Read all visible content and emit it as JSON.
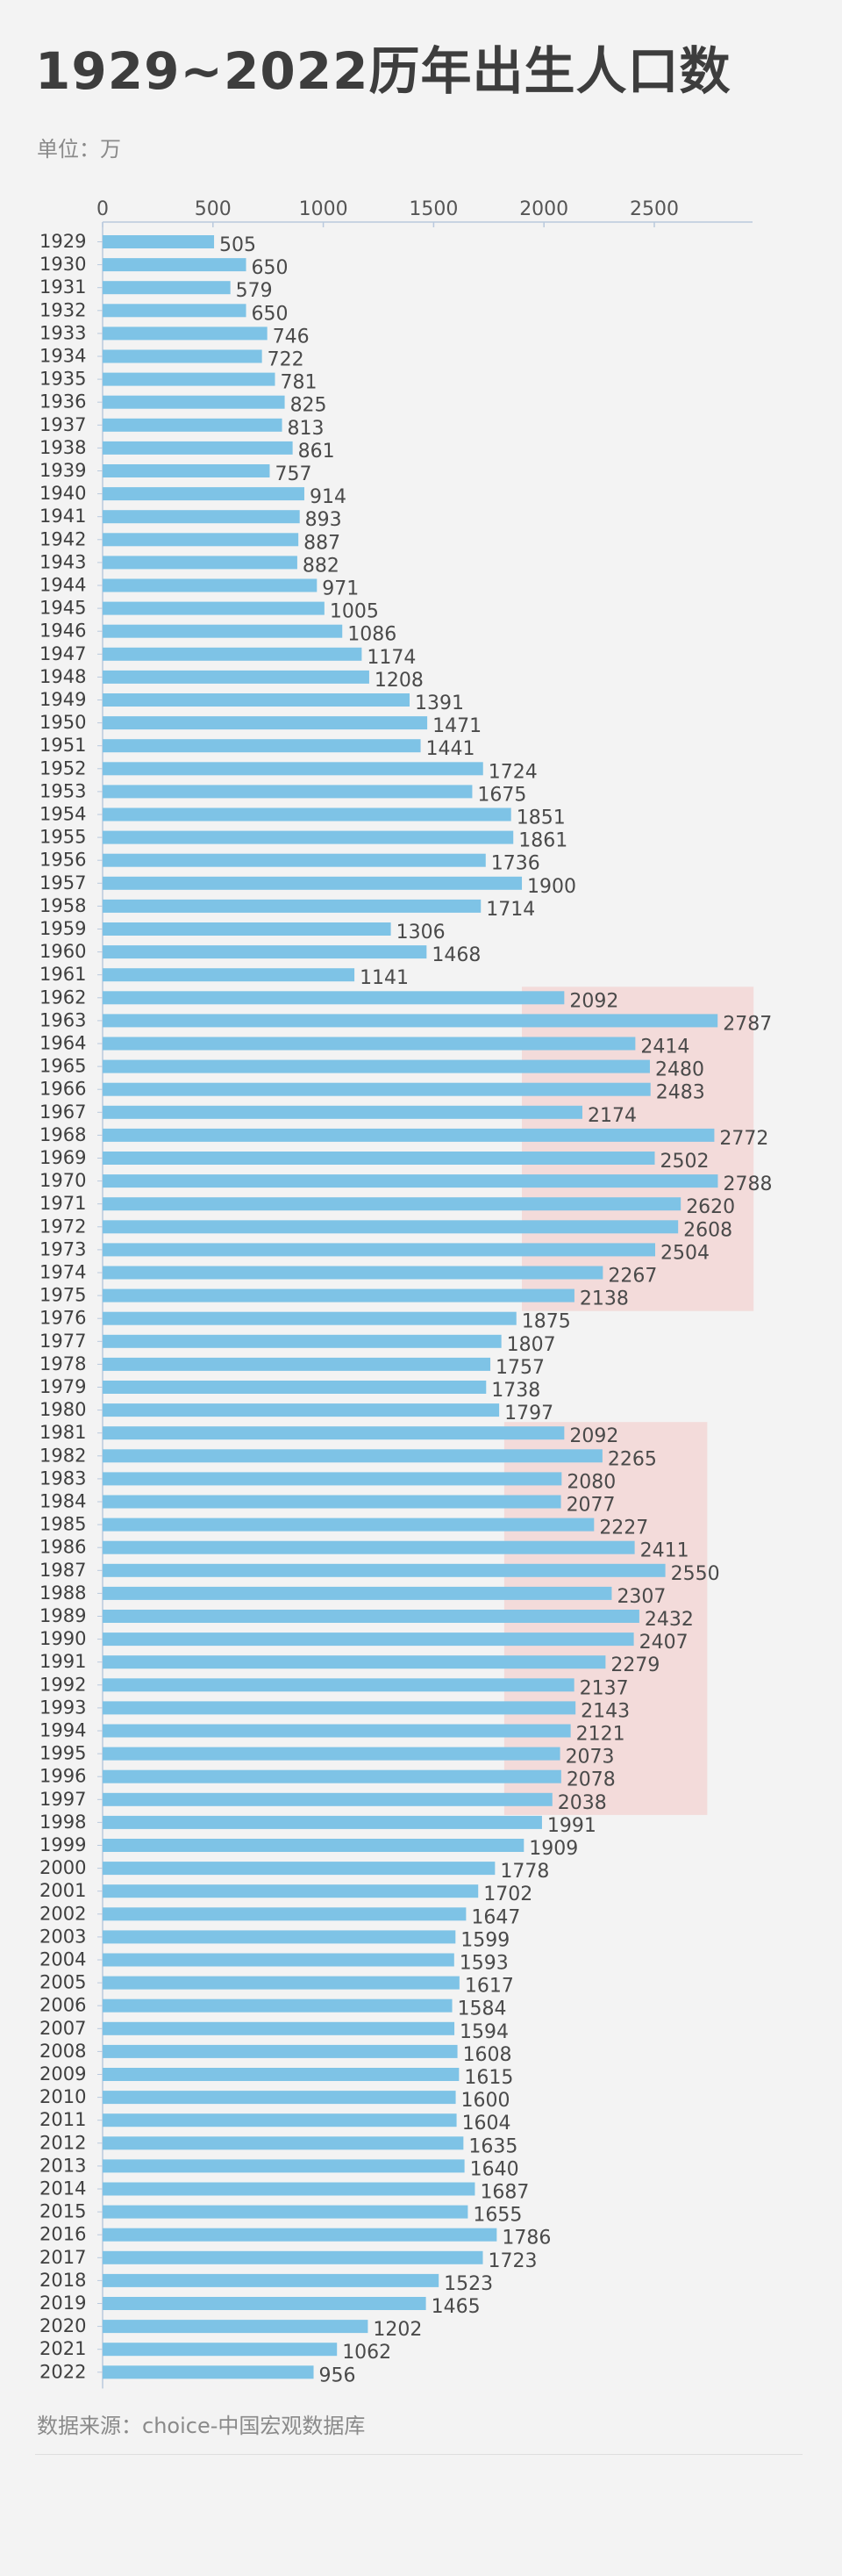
{
  "title": "1929~2022历年出生人口数",
  "unit_label": "单位：万",
  "source": "数据来源：choice-中国宏观数据库",
  "colors": {
    "bar": "#7ec3e6",
    "highlight": "#f2c7c5",
    "axis": "#b9c9dd",
    "background": "#f3f3f3"
  },
  "chart_data": {
    "type": "bar",
    "orientation": "horizontal",
    "title": "1929~2022历年出生人口数",
    "unit": "万",
    "xlim": [
      0,
      2950
    ],
    "x_ticks": [
      0,
      500,
      1000,
      1500,
      2000,
      2500
    ],
    "tick_labels": [
      "0",
      "500",
      "1000",
      "1500",
      "2000",
      "2500"
    ],
    "highlight_bands": [
      {
        "from_year": "1962",
        "to_year": "1975",
        "x_from": 1900,
        "x_to": 2950
      },
      {
        "from_year": "1981",
        "to_year": "1997",
        "x_from": 1820,
        "x_to": 2740
      }
    ],
    "categories": [
      "1929",
      "1930",
      "1931",
      "1932",
      "1933",
      "1934",
      "1935",
      "1936",
      "1937",
      "1938",
      "1939",
      "1940",
      "1941",
      "1942",
      "1943",
      "1944",
      "1945",
      "1946",
      "1947",
      "1948",
      "1949",
      "1950",
      "1951",
      "1952",
      "1953",
      "1954",
      "1955",
      "1956",
      "1957",
      "1958",
      "1959",
      "1960",
      "1961",
      "1962",
      "1963",
      "1964",
      "1965",
      "1966",
      "1967",
      "1968",
      "1969",
      "1970",
      "1971",
      "1972",
      "1973",
      "1974",
      "1975",
      "1976",
      "1977",
      "1978",
      "1979",
      "1980",
      "1981",
      "1982",
      "1983",
      "1984",
      "1985",
      "1986",
      "1987",
      "1988",
      "1989",
      "1990",
      "1991",
      "1992",
      "1993",
      "1994",
      "1995",
      "1996",
      "1997",
      "1998",
      "1999",
      "2000",
      "2001",
      "2002",
      "2003",
      "2004",
      "2005",
      "2006",
      "2007",
      "2008",
      "2009",
      "2010",
      "2011",
      "2012",
      "2013",
      "2014",
      "2015",
      "2016",
      "2017",
      "2018",
      "2019",
      "2020",
      "2021",
      "2022"
    ],
    "values": [
      505,
      650,
      579,
      650,
      746,
      722,
      781,
      825,
      813,
      861,
      757,
      914,
      893,
      887,
      882,
      971,
      1005,
      1086,
      1174,
      1208,
      1391,
      1471,
      1441,
      1724,
      1675,
      1851,
      1861,
      1736,
      1900,
      1714,
      1306,
      1468,
      1141,
      2092,
      2787,
      2414,
      2480,
      2483,
      2174,
      2772,
      2502,
      2788,
      2620,
      2608,
      2504,
      2267,
      2138,
      1875,
      1807,
      1757,
      1738,
      1797,
      2092,
      2265,
      2080,
      2077,
      2227,
      2411,
      2550,
      2307,
      2432,
      2407,
      2279,
      2137,
      2143,
      2121,
      2073,
      2078,
      2038,
      1991,
      1909,
      1778,
      1702,
      1647,
      1599,
      1593,
      1617,
      1584,
      1594,
      1608,
      1615,
      1600,
      1604,
      1635,
      1640,
      1687,
      1655,
      1786,
      1723,
      1523,
      1465,
      1202,
      1062,
      956
    ]
  }
}
